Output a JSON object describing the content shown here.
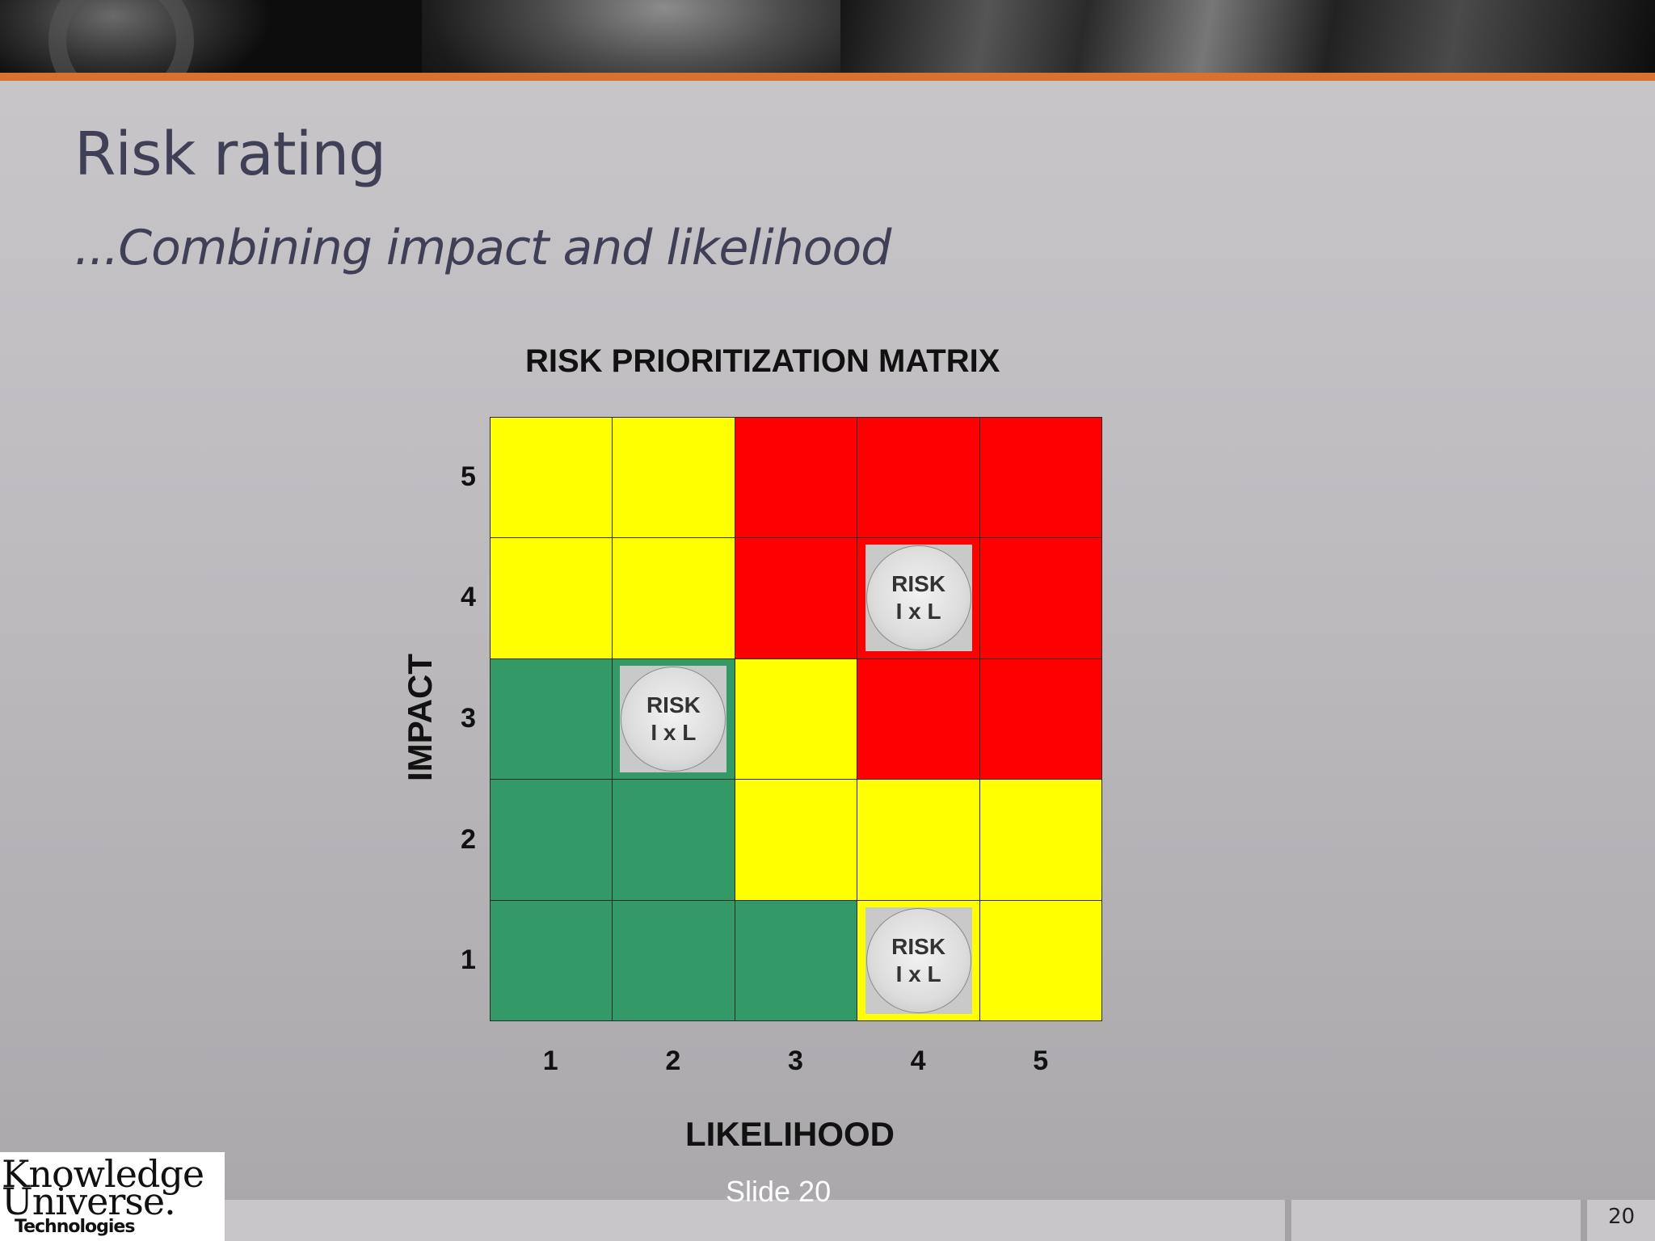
{
  "slide": {
    "title": "Risk rating",
    "subtitle": "...Combining impact and likelihood",
    "slide_label": "Slide 20",
    "page_number": "20"
  },
  "logo": {
    "line1": "Knowledge",
    "line2": "Universe.",
    "line3": "Technologies"
  },
  "matrix": {
    "title": "RISK PRIORITIZATION MATRIX",
    "x_label": "LIKELIHOOD",
    "y_label": "IMPACT",
    "x_ticks": [
      "1",
      "2",
      "3",
      "4",
      "5"
    ],
    "y_ticks": [
      "5",
      "4",
      "3",
      "2",
      "1"
    ],
    "colors": {
      "green": "#339966",
      "yellow": "#ffff00",
      "red": "#ff0000"
    },
    "rows": [
      {
        "impact": 5,
        "cells": [
          "yellow",
          "yellow",
          "red",
          "red",
          "red"
        ]
      },
      {
        "impact": 4,
        "cells": [
          "yellow",
          "yellow",
          "red",
          "red",
          "red"
        ]
      },
      {
        "impact": 3,
        "cells": [
          "green",
          "green",
          "yellow",
          "red",
          "red"
        ]
      },
      {
        "impact": 2,
        "cells": [
          "green",
          "green",
          "yellow",
          "yellow",
          "yellow"
        ]
      },
      {
        "impact": 1,
        "cells": [
          "green",
          "green",
          "green",
          "yellow",
          "yellow"
        ]
      }
    ],
    "markers": [
      {
        "likelihood": 4,
        "impact": 4,
        "line1": "RISK",
        "line2": "I x L"
      },
      {
        "likelihood": 2,
        "impact": 3,
        "line1": "RISK",
        "line2": "I x L"
      },
      {
        "likelihood": 4,
        "impact": 1,
        "line1": "RISK",
        "line2": "I x L"
      }
    ]
  }
}
